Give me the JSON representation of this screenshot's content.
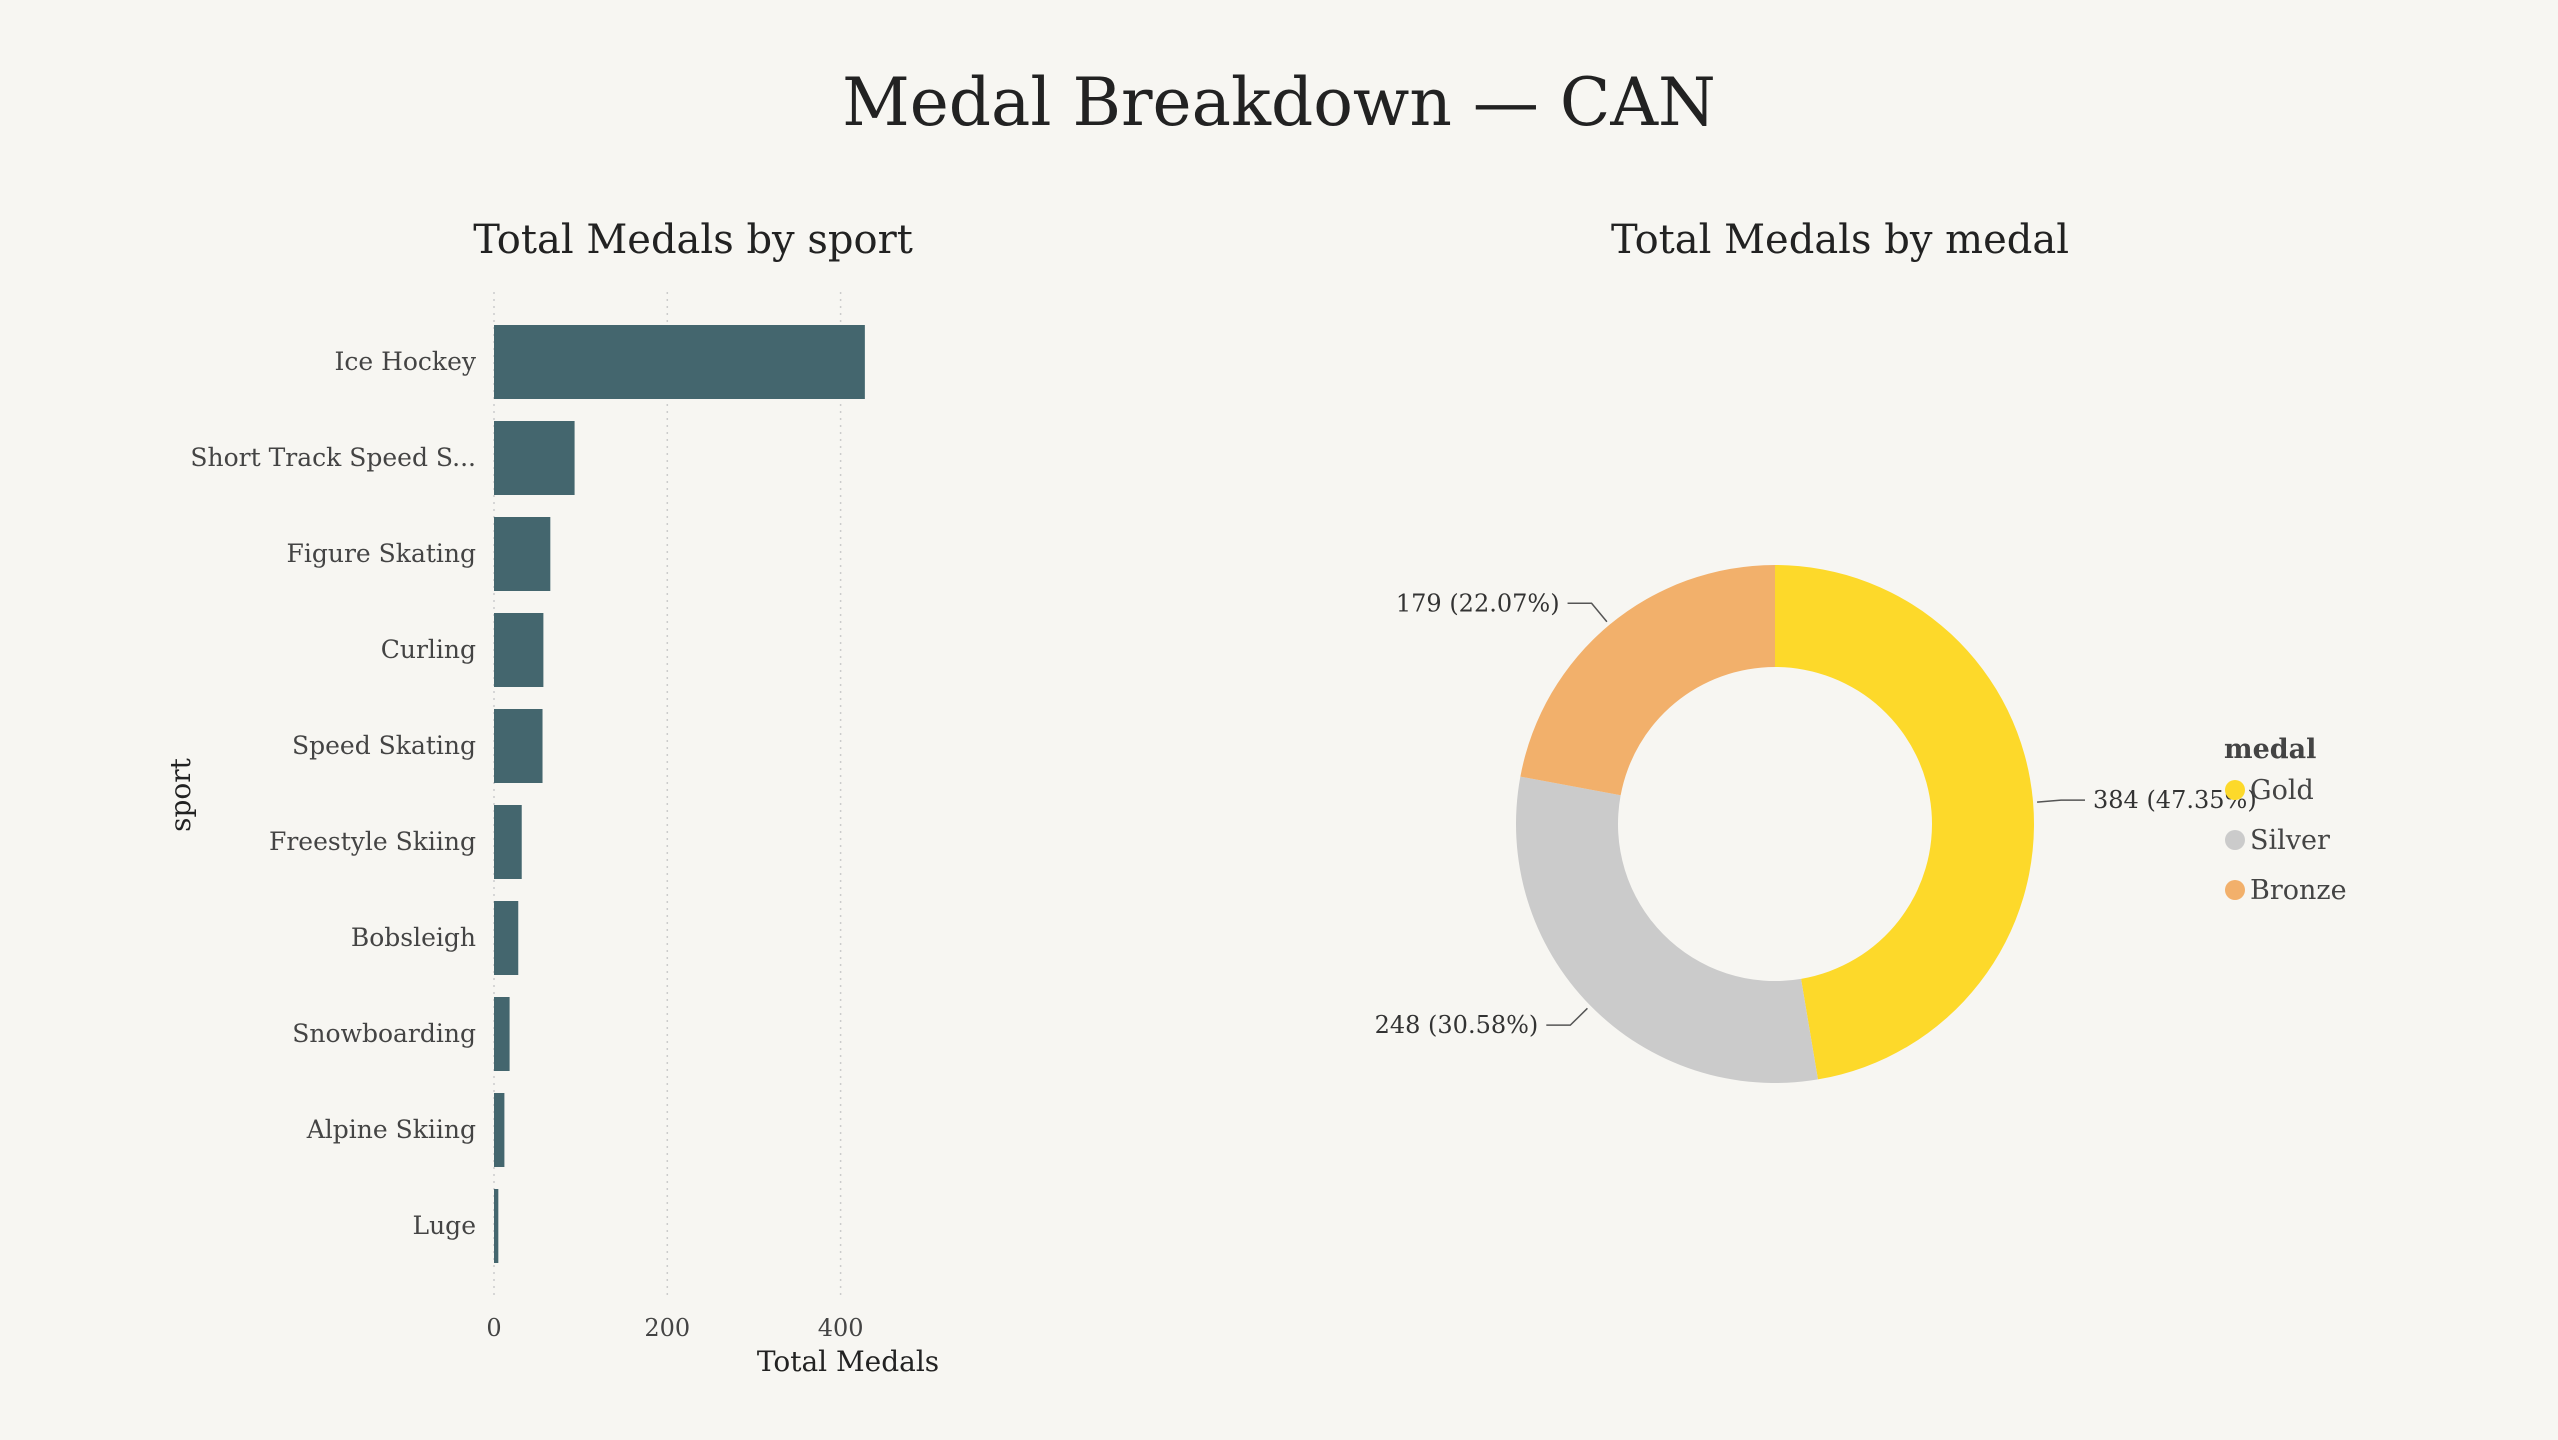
{
  "page": {
    "title": "Medal Breakdown — CAN"
  },
  "colors": {
    "background": "#f7f6f2",
    "bar": "#44666e",
    "grid": "#cccccc"
  },
  "chart_data": [
    {
      "type": "bar",
      "orientation": "horizontal",
      "title": "Total Medals by sport",
      "xlabel": "Total Medals",
      "ylabel": "sport",
      "xlim": [
        0,
        428
      ],
      "xticks": [
        0,
        200,
        400
      ],
      "grid": "vertical dotted",
      "categories": [
        "Ice Hockey",
        "Short Track Speed S...",
        "Figure Skating",
        "Curling",
        "Speed Skating",
        "Freestyle Skiing",
        "Bobsleigh",
        "Snowboarding",
        "Alpine Skiing",
        "Luge"
      ],
      "values": [
        428,
        93,
        65,
        57,
        56,
        32,
        28,
        18,
        12,
        5
      ]
    },
    {
      "type": "pie",
      "style": "donut",
      "title": "Total Medals by medal",
      "legend_title": "medal",
      "legend_position": "right",
      "slices": [
        {
          "label": "Gold",
          "value": 384,
          "percent": "47.35%",
          "text": "384 (47.35%)",
          "color": "#fdd92a"
        },
        {
          "label": "Silver",
          "value": 248,
          "percent": "30.58%",
          "text": "248 (30.58%)",
          "color": "#cbcbcb"
        },
        {
          "label": "Bronze",
          "value": 179,
          "percent": "22.07%",
          "text": "179 (22.07%)",
          "color": "#f2b06b"
        }
      ]
    }
  ]
}
